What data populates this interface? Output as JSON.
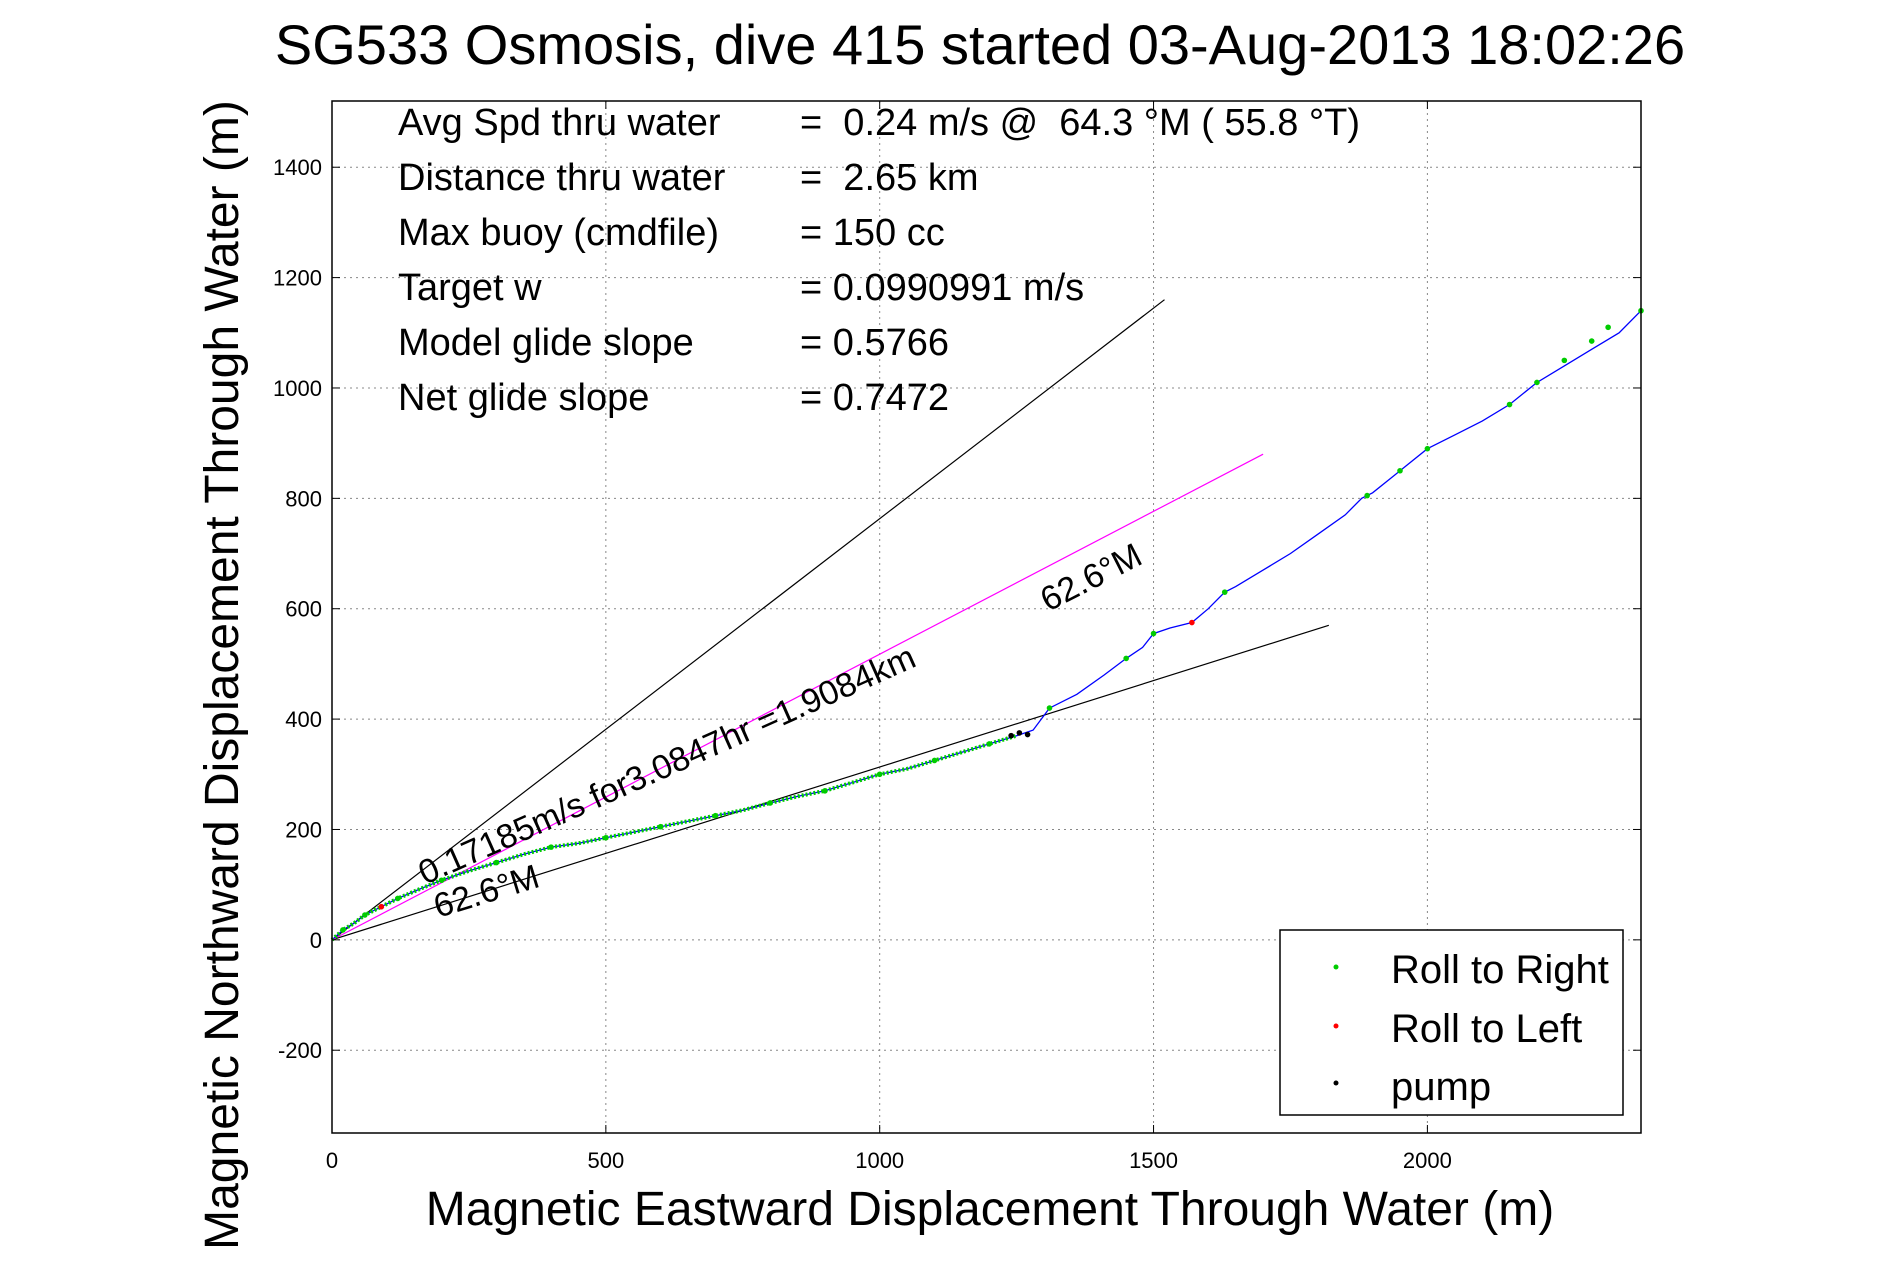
{
  "chart_data": {
    "type": "line",
    "title": "SG533 Osmosis, dive 415 started 03-Aug-2013 18:02:26",
    "xlabel": "Magnetic Eastward Displacement Through Water (m)",
    "ylabel": "Magnetic Northward Displacement Through Water (m)",
    "xlim": [
      0,
      2390
    ],
    "ylim": [
      -350,
      1520
    ],
    "xticks": [
      0,
      500,
      1000,
      1500,
      2000
    ],
    "yticks": [
      -200,
      0,
      200,
      400,
      600,
      800,
      1000,
      1200,
      1400
    ],
    "grid": true,
    "legend_position": "bottom-right",
    "stats": [
      {
        "label": "Avg Spd thru water",
        "value": "=  0.24 m/s @  64.3 °M ( 55.8 °T)"
      },
      {
        "label": "Distance thru water",
        "value": "=  2.65 km"
      },
      {
        "label": "Max buoy (cmdfile)",
        "value": "= 150 cc"
      },
      {
        "label": "Target w",
        "value": "= 0.0990991 m/s"
      },
      {
        "label": "Model glide slope",
        "value": "= 0.5766"
      },
      {
        "label": "Net glide slope",
        "value": "= 0.7472"
      }
    ],
    "annotations": {
      "current": "0.17185m/s for3.0847hr =1.9084km",
      "heading_upper": "62.6°M",
      "heading_lower": "62.6°M"
    },
    "legend": [
      "Roll to Right",
      "Roll to Left",
      "pump"
    ],
    "reference_lines": [
      {
        "color": "#000000",
        "x": [
          0,
          1520
        ],
        "y": [
          0,
          1160
        ]
      },
      {
        "color": "#000000",
        "x": [
          0,
          1820
        ],
        "y": [
          0,
          570
        ]
      },
      {
        "color": "#ff00ff",
        "x": [
          0,
          1700
        ],
        "y": [
          0,
          880
        ]
      }
    ],
    "track": {
      "color": "#0000ff",
      "x": [
        0,
        20,
        40,
        60,
        90,
        120,
        160,
        200,
        250,
        300,
        350,
        400,
        450,
        500,
        550,
        600,
        650,
        700,
        750,
        800,
        850,
        900,
        950,
        1000,
        1050,
        1100,
        1150,
        1200,
        1250,
        1280,
        1310,
        1360,
        1410,
        1450,
        1480,
        1500,
        1530,
        1570,
        1600,
        1630,
        1650,
        1700,
        1750,
        1800,
        1850,
        1880,
        1900,
        1950,
        2000,
        2050,
        2100,
        2150,
        2200,
        2250,
        2300,
        2350,
        2390
      ],
      "y": [
        0,
        18,
        30,
        45,
        60,
        75,
        92,
        108,
        125,
        140,
        155,
        168,
        175,
        185,
        195,
        205,
        215,
        225,
        235,
        248,
        260,
        270,
        285,
        300,
        310,
        325,
        340,
        355,
        370,
        380,
        420,
        445,
        480,
        510,
        530,
        555,
        565,
        575,
        600,
        630,
        640,
        670,
        700,
        735,
        770,
        800,
        810,
        850,
        890,
        915,
        940,
        970,
        1010,
        1040,
        1070,
        1100,
        1140
      ]
    },
    "roll_right": {
      "color": "#00cc00",
      "x": [
        20,
        60,
        120,
        200,
        300,
        400,
        500,
        600,
        700,
        800,
        900,
        1000,
        1100,
        1200,
        1310,
        1450,
        1500,
        1630,
        1890,
        1950,
        2000,
        2150,
        2200,
        2250,
        2300,
        2330,
        2390
      ],
      "y": [
        18,
        45,
        75,
        108,
        140,
        168,
        185,
        205,
        225,
        248,
        270,
        300,
        325,
        355,
        420,
        510,
        555,
        630,
        805,
        850,
        890,
        970,
        1010,
        1050,
        1085,
        1110,
        1140
      ]
    },
    "roll_left": {
      "color": "#ff0000",
      "x": [
        90,
        1570
      ],
      "y": [
        60,
        575
      ]
    },
    "pump": {
      "color": "#000000",
      "x": [
        1240,
        1255,
        1270
      ],
      "y": [
        370,
        375,
        372
      ]
    }
  }
}
